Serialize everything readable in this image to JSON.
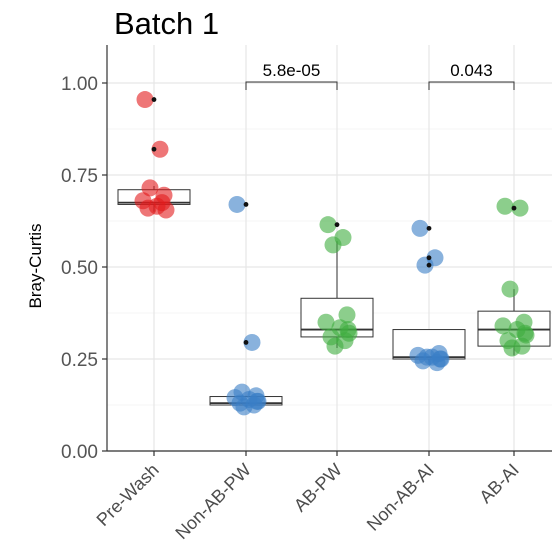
{
  "chart_data": {
    "type": "box",
    "title": "Batch 1",
    "ylabel": "Bray-Curtis",
    "xlabel": "",
    "ylim": [
      0,
      1.05
    ],
    "yticks": [
      "0.00",
      "0.25",
      "0.50",
      "0.75",
      "1.00"
    ],
    "grid": true,
    "categories": [
      "Pre-Wash",
      "Non-AB-PW",
      "AB-PW",
      "Non-AB-AI",
      "AB-AI"
    ],
    "colors": [
      "#e31a1c",
      "#3a7fc6",
      "#3fad3f",
      "#3a7fc6",
      "#3fad3f"
    ],
    "boxes": [
      {
        "q1": 0.67,
        "median": 0.675,
        "q3": 0.71,
        "whisker_low": 0.65,
        "whisker_high": 0.72
      },
      {
        "q1": 0.125,
        "median": 0.13,
        "q3": 0.148,
        "whisker_low": 0.12,
        "whisker_high": 0.15
      },
      {
        "q1": 0.31,
        "median": 0.33,
        "q3": 0.415,
        "whisker_low": 0.28,
        "whisker_high": 0.57
      },
      {
        "q1": 0.25,
        "median": 0.255,
        "q3": 0.33,
        "whisker_low": 0.24,
        "whisker_high": 0.33
      },
      {
        "q1": 0.285,
        "median": 0.33,
        "q3": 0.38,
        "whisker_low": 0.26,
        "whisker_high": 0.44
      }
    ],
    "points": [
      [
        0.955,
        0.82,
        0.715,
        0.695,
        0.68,
        0.665,
        0.655,
        0.66,
        0.675
      ],
      [
        0.67,
        0.295,
        0.16,
        0.15,
        0.145,
        0.14,
        0.135,
        0.13,
        0.125,
        0.12,
        0.135
      ],
      [
        0.615,
        0.58,
        0.56,
        0.37,
        0.35,
        0.335,
        0.32,
        0.31,
        0.3,
        0.285,
        0.33
      ],
      [
        0.605,
        0.525,
        0.505,
        0.265,
        0.26,
        0.255,
        0.25,
        0.245,
        0.24,
        0.255,
        0.25
      ],
      [
        0.665,
        0.66,
        0.44,
        0.35,
        0.34,
        0.33,
        0.315,
        0.3,
        0.285,
        0.28,
        0.32
      ]
    ],
    "outliers": [
      {
        "category": "Pre-Wash",
        "value": 0.955
      },
      {
        "category": "Pre-Wash",
        "value": 0.82
      },
      {
        "category": "Non-AB-PW",
        "value": 0.67
      },
      {
        "category": "Non-AB-PW",
        "value": 0.295
      },
      {
        "category": "AB-PW",
        "value": 0.615
      },
      {
        "category": "Non-AB-AI",
        "value": 0.605
      },
      {
        "category": "Non-AB-AI",
        "value": 0.525
      },
      {
        "category": "Non-AB-AI",
        "value": 0.505
      },
      {
        "category": "AB-AI",
        "value": 0.66
      }
    ],
    "annotations": [
      {
        "label": "5.8e-05",
        "from": "Non-AB-PW",
        "to": "AB-PW",
        "y": 1.0
      },
      {
        "label": "0.043",
        "from": "Non-AB-AI",
        "to": "AB-AI",
        "y": 1.0
      }
    ]
  }
}
